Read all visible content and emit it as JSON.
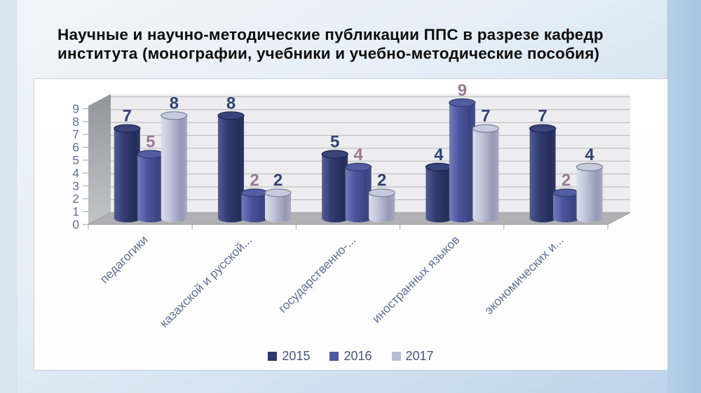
{
  "slide": {
    "title_lines": [
      "Научные и научно-методические публикации ППС в разрезе кафедр",
      "института (монографии, учебники и учебно-методические пособия)"
    ]
  },
  "chart_data": {
    "type": "bar",
    "subtype": "3d-cylinder",
    "categories": [
      "педагогики",
      "казахской и русской...",
      "государственно-...",
      "иностранных языков",
      "экономических и..."
    ],
    "series": [
      {
        "name": "2015",
        "color": "#2e3a6e",
        "label_color": "#2d4474",
        "values": [
          7,
          8,
          5,
          4,
          7
        ]
      },
      {
        "name": "2016",
        "color": "#4c58a0",
        "label_color": "#9b7795",
        "values": [
          5,
          2,
          4,
          9,
          2
        ]
      },
      {
        "name": "2017",
        "color": "#b9bed6",
        "label_color": "#2d4474",
        "values": [
          8,
          2,
          2,
          7,
          4
        ]
      }
    ],
    "ylim": [
      0,
      9
    ],
    "y_ticks": [
      0,
      1,
      2,
      3,
      4,
      5,
      6,
      7,
      8,
      9
    ],
    "grid": true,
    "legend_position": "bottom",
    "axis_label_color": "#5d6f99"
  }
}
